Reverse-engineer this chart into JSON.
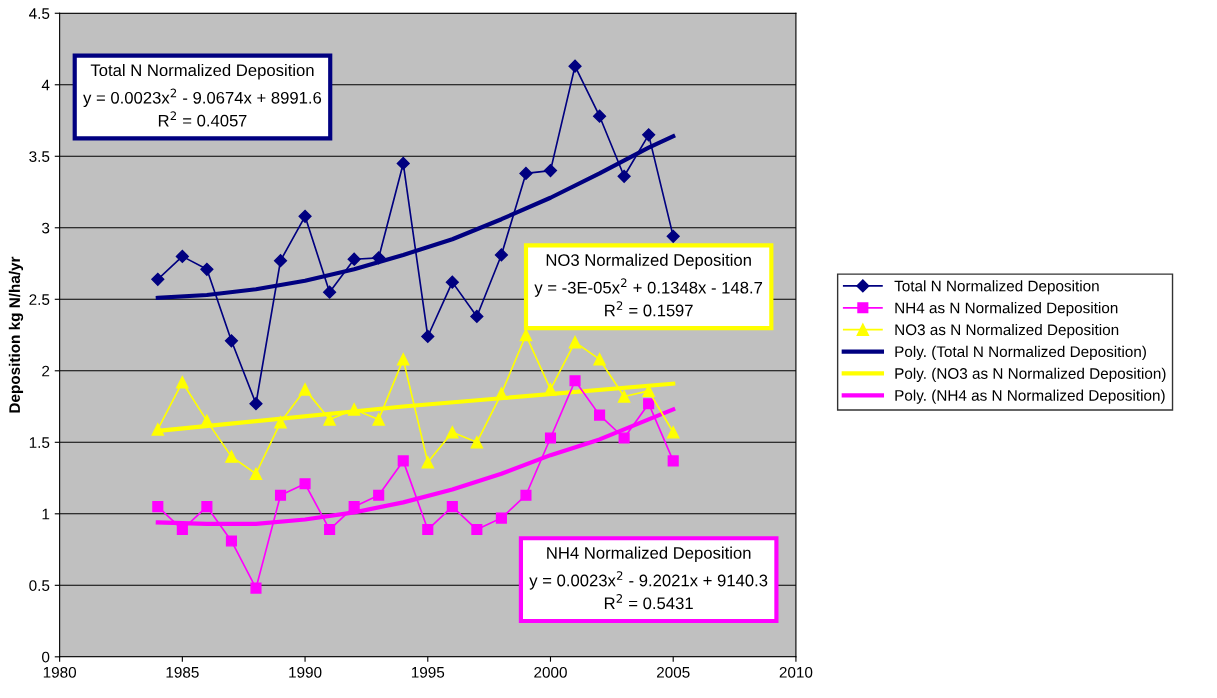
{
  "chart_data": {
    "type": "line",
    "ylabel": "Deposition kg N/ha/yr",
    "x": [
      1984,
      1985,
      1986,
      1987,
      1988,
      1989,
      1990,
      1991,
      1992,
      1993,
      1994,
      1995,
      1996,
      1997,
      1998,
      1999,
      2000,
      2001,
      2002,
      2003,
      2004,
      2005
    ],
    "series": [
      {
        "name": "Total N Normalized Deposition",
        "color": "#000080",
        "marker": "diamond",
        "values": [
          2.64,
          2.8,
          2.71,
          2.21,
          1.77,
          2.77,
          3.08,
          2.55,
          2.78,
          2.79,
          3.45,
          2.24,
          2.62,
          2.38,
          2.81,
          3.38,
          3.4,
          4.13,
          3.78,
          3.36,
          3.65,
          2.94
        ]
      },
      {
        "name": "NH4 as N Normalized Deposition",
        "color": "#ff00ff",
        "marker": "square",
        "values": [
          1.05,
          0.89,
          1.05,
          0.81,
          0.48,
          1.13,
          1.21,
          0.89,
          1.05,
          1.13,
          1.37,
          0.89,
          1.05,
          0.89,
          0.97,
          1.13,
          1.53,
          1.93,
          1.69,
          1.53,
          1.77,
          1.37
        ]
      },
      {
        "name": "NO3 as N Normalized Deposition",
        "color": "#ffff00",
        "marker": "triangle",
        "values": [
          1.59,
          1.92,
          1.65,
          1.4,
          1.28,
          1.64,
          1.87,
          1.66,
          1.73,
          1.66,
          2.08,
          1.36,
          1.57,
          1.5,
          1.84,
          2.25,
          1.87,
          2.2,
          2.08,
          1.82,
          1.86,
          1.57
        ]
      },
      {
        "name": "Poly. (Total N Normalized Deposition)",
        "color": "#000080",
        "marker": "none",
        "x": [
          1984,
          1986,
          1988,
          1990,
          1992,
          1994,
          1996,
          1998,
          2000,
          2002,
          2004,
          2005
        ],
        "values": [
          2.51,
          2.53,
          2.57,
          2.63,
          2.71,
          2.81,
          2.92,
          3.06,
          3.21,
          3.38,
          3.56,
          3.64
        ]
      },
      {
        "name": "Poly. (NO3 as N Normalized Deposition)",
        "color": "#ffff00",
        "marker": "none",
        "x": [
          1984,
          1994,
          2005
        ],
        "values": [
          1.58,
          1.75,
          1.91
        ]
      },
      {
        "name": "Poly. (NH4 as N Normalized Deposition)",
        "color": "#ff00ff",
        "marker": "none",
        "x": [
          1984,
          1986,
          1988,
          1990,
          1992,
          1994,
          1996,
          1998,
          2000,
          2002,
          2004,
          2005
        ],
        "values": [
          0.94,
          0.93,
          0.93,
          0.96,
          1.01,
          1.08,
          1.17,
          1.28,
          1.41,
          1.52,
          1.66,
          1.73
        ]
      }
    ],
    "annotations": [
      "Total N Normalized Deposition\ny = 0.0023x$^{2}$ - 9.0674x + 8991.6\nR$^{2}$ = 0.4057",
      "NO3 Normalized Deposition\ny = -3E-05x$^{2}$ + 0.1348x - 148.7\nR$^{2}$ = 0.1597",
      "NH4 Normalized Deposition\ny = 0.0023x$^{2}$ - 9.2021x + 9140.3\nR$^{2}$ = 0.5431"
    ],
    "xlim": [
      1980,
      2010
    ],
    "xticks": [
      1980,
      1985,
      1990,
      1995,
      2000,
      2005,
      2010
    ],
    "ylim": [
      0,
      4.5
    ],
    "yticks": [
      0,
      0.5,
      1,
      1.5,
      2,
      2.5,
      3,
      3.5,
      4,
      4.5
    ],
    "grid": "y",
    "legend": "right"
  }
}
